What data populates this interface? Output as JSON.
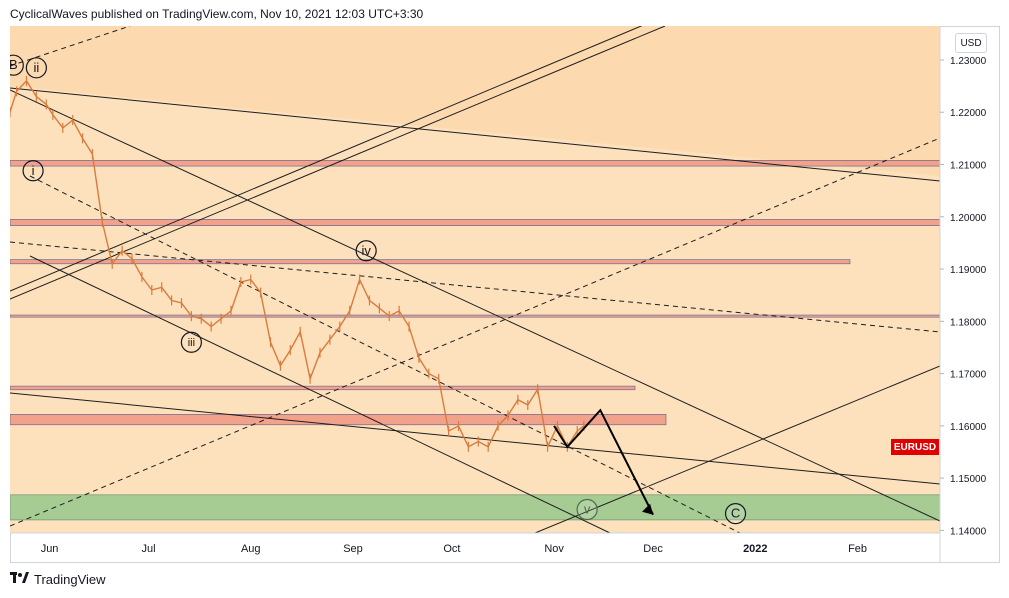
{
  "header": {
    "text": "CyclicalWaves published on TradingView.com, Nov 10, 2021 12:03 UTC+3:30"
  },
  "footer": {
    "brand": "TradingView"
  },
  "currency_badge": "USD",
  "symbol_tag": "EURUSD",
  "colors": {
    "background_band": "#fcd9ae",
    "background_inner": "#fbe7c8",
    "candles": "#d97b3f",
    "resistance_band": "#f29c86",
    "support_band": "#98c88c",
    "price_tag": "#e00000"
  },
  "chart_data": {
    "type": "line",
    "title": "",
    "symbol": "EURUSD",
    "currency": "USD",
    "xlabel": "",
    "ylabel": "",
    "x_ticks": [
      "Jun",
      "Jul",
      "Aug",
      "Sep",
      "Oct",
      "Nov",
      "Dec",
      "2022",
      "Feb"
    ],
    "y_ticks": [
      "1.23000",
      "1.22000",
      "1.21000",
      "1.20000",
      "1.19000",
      "1.18000",
      "1.17000",
      "1.16000",
      "1.15000",
      "1.14000"
    ],
    "ylim": [
      1.1395,
      1.2365
    ],
    "xlim": [
      "2021-05-20",
      "2022-02-26"
    ],
    "grid": false,
    "series": [
      {
        "x": [
          "2021-05-20",
          "2021-05-22",
          "2021-05-25",
          "2021-05-28",
          "2021-05-31",
          "2021-06-02",
          "2021-06-05",
          "2021-06-08",
          "2021-06-11",
          "2021-06-14",
          "2021-06-17",
          "2021-06-20",
          "2021-06-23",
          "2021-06-26",
          "2021-06-29",
          "2021-07-02",
          "2021-07-05",
          "2021-07-08",
          "2021-07-11",
          "2021-07-14",
          "2021-07-17",
          "2021-07-20",
          "2021-07-23",
          "2021-07-26",
          "2021-07-29",
          "2021-08-01",
          "2021-08-04",
          "2021-08-07",
          "2021-08-10",
          "2021-08-13",
          "2021-08-16",
          "2021-08-19",
          "2021-08-22",
          "2021-08-25",
          "2021-08-28",
          "2021-08-31",
          "2021-09-03",
          "2021-09-06",
          "2021-09-09",
          "2021-09-12",
          "2021-09-15",
          "2021-09-18",
          "2021-09-21",
          "2021-09-24",
          "2021-09-27",
          "2021-09-30",
          "2021-10-03",
          "2021-10-06",
          "2021-10-09",
          "2021-10-12",
          "2021-10-15",
          "2021-10-18",
          "2021-10-21",
          "2021-10-24",
          "2021-10-27",
          "2021-10-30",
          "2021-11-02",
          "2021-11-05",
          "2021-11-08",
          "2021-11-10"
        ],
        "values": [
          1.22,
          1.224,
          1.226,
          1.223,
          1.2215,
          1.2195,
          1.217,
          1.2185,
          1.215,
          1.212,
          1.199,
          1.191,
          1.1935,
          1.192,
          1.1885,
          1.186,
          1.1865,
          1.184,
          1.1835,
          1.181,
          1.1805,
          1.179,
          1.1805,
          1.182,
          1.1875,
          1.188,
          1.1855,
          1.176,
          1.1715,
          1.1745,
          1.178,
          1.169,
          1.174,
          1.1765,
          1.179,
          1.182,
          1.188,
          1.184,
          1.1825,
          1.181,
          1.182,
          1.179,
          1.173,
          1.17,
          1.169,
          1.159,
          1.16,
          1.156,
          1.157,
          1.156,
          1.16,
          1.162,
          1.165,
          1.164,
          1.167,
          1.156,
          1.16,
          1.156,
          1.159,
          1.16
        ]
      }
    ],
    "horizontal_zones": [
      {
        "low": 1.2097,
        "high": 1.2108,
        "color": "#f29c86"
      },
      {
        "low": 1.1983,
        "high": 1.1995,
        "color": "#f29c86"
      },
      {
        "low": 1.191,
        "high": 1.1918,
        "color": "#f29c86"
      },
      {
        "low": 1.1808,
        "high": 1.1812,
        "color": "#f29c86"
      },
      {
        "low": 1.1669,
        "high": 1.1676,
        "color": "#f29c86"
      },
      {
        "low": 1.1602,
        "high": 1.1622,
        "color": "#f29c86"
      },
      {
        "low": 1.142,
        "high": 1.1468,
        "color": "#98c88c"
      }
    ],
    "wave_labels": [
      {
        "text": "B",
        "x": "2021-05-21",
        "y": 1.229
      },
      {
        "text": "ii",
        "x": "2021-05-28",
        "y": 1.2285
      },
      {
        "text": "i",
        "x": "2021-05-27",
        "y": 1.2088
      },
      {
        "text": "iii",
        "x": "2021-07-14",
        "y": 1.176
      },
      {
        "text": "iv",
        "x": "2021-09-05",
        "y": 1.1935
      },
      {
        "text": "v",
        "x": "2021-11-11",
        "y": 1.144
      },
      {
        "text": "C",
        "x": "2021-12-26",
        "y": 1.1432
      }
    ],
    "projection": {
      "x": [
        "2021-11-01",
        "2021-11-05",
        "2021-11-15",
        "2021-12-01"
      ],
      "values": [
        1.16,
        1.156,
        1.163,
        1.143
      ]
    }
  }
}
